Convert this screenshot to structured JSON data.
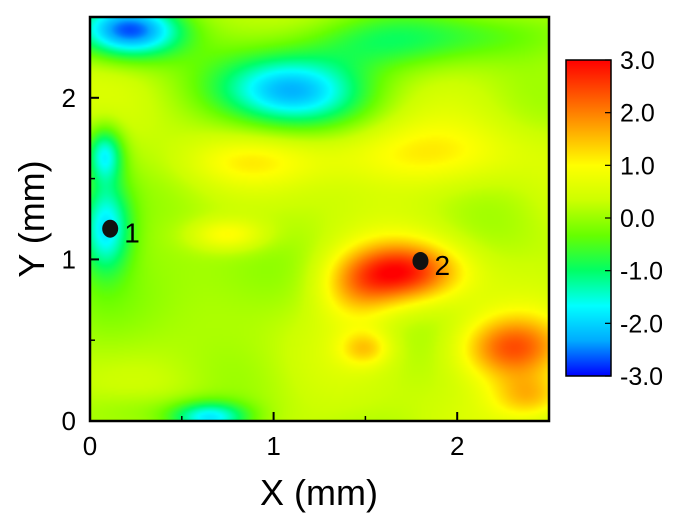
{
  "chart_data": {
    "type": "heatmap",
    "title": "",
    "xlabel": "X (mm)",
    "ylabel": "Y (mm)",
    "xlim": [
      0,
      2.5
    ],
    "ylim": [
      0,
      2.5
    ],
    "x_ticks": [
      {
        "value": 0,
        "label": "0"
      },
      {
        "value": 1,
        "label": "1"
      },
      {
        "value": 2,
        "label": "2"
      }
    ],
    "y_ticks": [
      {
        "value": 0,
        "label": "0"
      },
      {
        "value": 1,
        "label": "1"
      },
      {
        "value": 2,
        "label": "2"
      }
    ],
    "colorbar": {
      "range": [
        -3.0,
        3.0
      ],
      "ticks": [
        {
          "value": 3.0,
          "label": "3.0"
        },
        {
          "value": 2.0,
          "label": "2.0"
        },
        {
          "value": 1.0,
          "label": "1.0"
        },
        {
          "value": 0.0,
          "label": "0.0"
        },
        {
          "value": -1.0,
          "label": "-1.0"
        },
        {
          "value": -2.0,
          "label": "-2.0"
        },
        {
          "value": -3.0,
          "label": "-3.0"
        }
      ],
      "colormap": [
        "#0000ff",
        "#00aaff",
        "#00ffff",
        "#00ff66",
        "#66ff00",
        "#ccff00",
        "#ffff00",
        "#ffaa00",
        "#ff5500",
        "#ff0000"
      ]
    },
    "background_value": 0.3,
    "features": [
      {
        "x": 0.22,
        "y": 2.42,
        "sx": 0.2,
        "sy": 0.12,
        "amp": -3.0
      },
      {
        "x": 1.1,
        "y": 2.05,
        "sx": 0.28,
        "sy": 0.16,
        "amp": -2.6
      },
      {
        "x": 1.55,
        "y": 2.35,
        "sx": 0.35,
        "sy": 0.12,
        "amp": -0.9
      },
      {
        "x": 2.2,
        "y": 2.4,
        "sx": 0.3,
        "sy": 0.12,
        "amp": -0.7
      },
      {
        "x": 0.08,
        "y": 1.65,
        "sx": 0.07,
        "sy": 0.12,
        "amp": -1.8
      },
      {
        "x": 0.08,
        "y": 1.2,
        "sx": 0.1,
        "sy": 0.2,
        "amp": -2.1
      },
      {
        "x": 0.5,
        "y": 0.85,
        "sx": 0.35,
        "sy": 0.25,
        "amp": -0.5
      },
      {
        "x": 0.65,
        "y": 0.02,
        "sx": 0.15,
        "sy": 0.07,
        "amp": -2.0
      },
      {
        "x": 0.25,
        "y": 0.05,
        "sx": 0.2,
        "sy": 0.1,
        "amp": -0.5
      },
      {
        "x": 1.7,
        "y": 0.92,
        "sx": 0.22,
        "sy": 0.13,
        "amp": 2.4
      },
      {
        "x": 1.45,
        "y": 0.8,
        "sx": 0.15,
        "sy": 0.15,
        "amp": 0.9
      },
      {
        "x": 2.3,
        "y": 0.45,
        "sx": 0.2,
        "sy": 0.14,
        "amp": 2.0
      },
      {
        "x": 2.4,
        "y": 0.15,
        "sx": 0.15,
        "sy": 0.1,
        "amp": 1.2
      },
      {
        "x": 1.5,
        "y": 0.45,
        "sx": 0.1,
        "sy": 0.08,
        "amp": 1.0
      },
      {
        "x": 0.75,
        "y": 1.15,
        "sx": 0.15,
        "sy": 0.07,
        "amp": 0.9
      },
      {
        "x": 1.7,
        "y": 1.65,
        "sx": 0.45,
        "sy": 0.14,
        "amp": 0.8
      },
      {
        "x": 0.85,
        "y": 1.6,
        "sx": 0.25,
        "sy": 0.1,
        "amp": 0.5
      }
    ],
    "markers": [
      {
        "label": "1",
        "x": 0.11,
        "y": 1.19
      },
      {
        "label": "2",
        "x": 1.8,
        "y": 0.99
      }
    ]
  }
}
